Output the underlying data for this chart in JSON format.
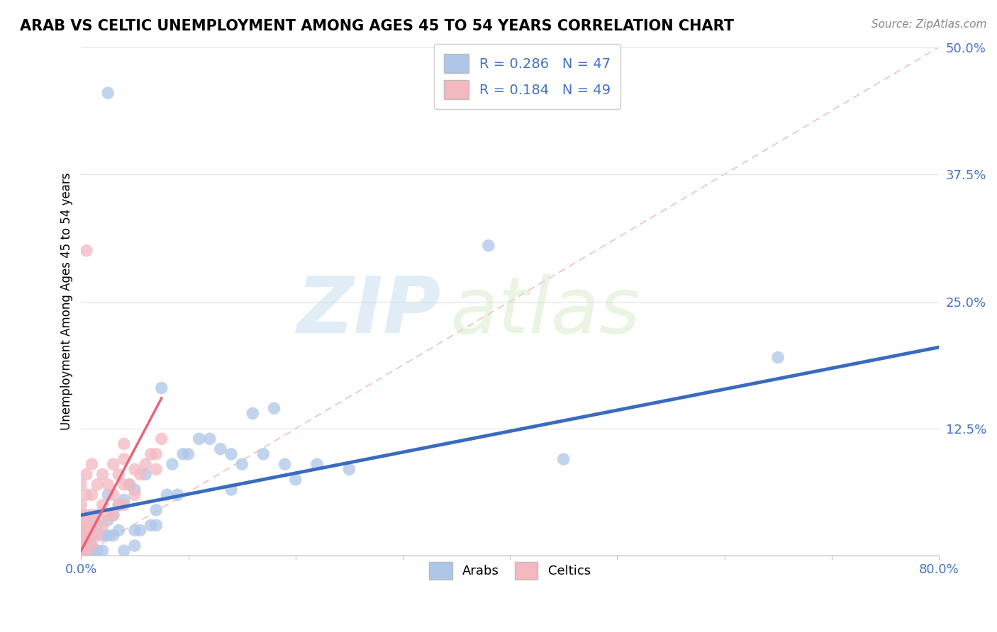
{
  "title": "ARAB VS CELTIC UNEMPLOYMENT AMONG AGES 45 TO 54 YEARS CORRELATION CHART",
  "source": "Source: ZipAtlas.com",
  "xlabel": "",
  "ylabel": "Unemployment Among Ages 45 to 54 years",
  "xlim": [
    0,
    0.8
  ],
  "ylim": [
    0,
    0.5
  ],
  "ytick_positions": [
    0.0,
    0.125,
    0.25,
    0.375,
    0.5
  ],
  "ytick_labels": [
    "",
    "12.5%",
    "25.0%",
    "37.5%",
    "50.0%"
  ],
  "arab_R": 0.286,
  "arab_N": 47,
  "celtic_R": 0.184,
  "celtic_N": 49,
  "arab_color": "#aec6e8",
  "celtic_color": "#f4b8c1",
  "arab_line_color": "#3a6bbf",
  "celtic_line_color": "#e8637a",
  "diag_line_color": "#f0c0c0",
  "watermark_zip": "ZIP",
  "watermark_atlas": "atlas",
  "arab_x": [
    0.005,
    0.01,
    0.01,
    0.01,
    0.015,
    0.015,
    0.02,
    0.02,
    0.025,
    0.025,
    0.025,
    0.03,
    0.03,
    0.035,
    0.035,
    0.04,
    0.04,
    0.045,
    0.05,
    0.05,
    0.05,
    0.055,
    0.06,
    0.065,
    0.07,
    0.07,
    0.075,
    0.08,
    0.085,
    0.09,
    0.095,
    0.1,
    0.11,
    0.12,
    0.13,
    0.14,
    0.14,
    0.15,
    0.16,
    0.17,
    0.18,
    0.19,
    0.2,
    0.22,
    0.25,
    0.45,
    0.65
  ],
  "arab_y": [
    0.005,
    0.005,
    0.01,
    0.02,
    0.005,
    0.03,
    0.005,
    0.02,
    0.02,
    0.035,
    0.06,
    0.02,
    0.04,
    0.025,
    0.05,
    0.005,
    0.055,
    0.07,
    0.01,
    0.025,
    0.065,
    0.025,
    0.08,
    0.03,
    0.03,
    0.045,
    0.165,
    0.06,
    0.09,
    0.06,
    0.1,
    0.1,
    0.115,
    0.115,
    0.105,
    0.1,
    0.065,
    0.09,
    0.14,
    0.1,
    0.145,
    0.09,
    0.075,
    0.09,
    0.085,
    0.095,
    0.195
  ],
  "celtic_x": [
    0.0,
    0.0,
    0.0,
    0.0,
    0.0,
    0.0,
    0.0,
    0.0,
    0.0,
    0.0,
    0.005,
    0.005,
    0.005,
    0.005,
    0.005,
    0.005,
    0.005,
    0.01,
    0.01,
    0.01,
    0.01,
    0.01,
    0.01,
    0.015,
    0.015,
    0.015,
    0.02,
    0.02,
    0.02,
    0.025,
    0.025,
    0.03,
    0.03,
    0.03,
    0.035,
    0.035,
    0.04,
    0.04,
    0.04,
    0.04,
    0.045,
    0.05,
    0.05,
    0.055,
    0.06,
    0.065,
    0.07,
    0.07,
    0.075
  ],
  "celtic_y": [
    0.0,
    0.005,
    0.01,
    0.015,
    0.02,
    0.025,
    0.03,
    0.04,
    0.05,
    0.07,
    0.005,
    0.01,
    0.02,
    0.03,
    0.04,
    0.06,
    0.08,
    0.01,
    0.02,
    0.03,
    0.04,
    0.06,
    0.09,
    0.02,
    0.04,
    0.07,
    0.03,
    0.05,
    0.08,
    0.04,
    0.07,
    0.04,
    0.06,
    0.09,
    0.05,
    0.08,
    0.05,
    0.07,
    0.095,
    0.11,
    0.07,
    0.06,
    0.085,
    0.08,
    0.09,
    0.1,
    0.085,
    0.1,
    0.115
  ],
  "celtic_outlier_x": [
    0.005
  ],
  "celtic_outlier_y": [
    0.3
  ],
  "arab_outlier_x": [
    0.025
  ],
  "arab_outlier_y": [
    0.455
  ],
  "arab_outlier2_x": [
    0.38
  ],
  "arab_outlier2_y": [
    0.305
  ],
  "arab_line_x0": 0.0,
  "arab_line_x1": 0.8,
  "arab_line_y0": 0.04,
  "arab_line_y1": 0.205,
  "celtic_line_x0": 0.0,
  "celtic_line_x1": 0.075,
  "celtic_line_y0": 0.005,
  "celtic_line_y1": 0.155
}
